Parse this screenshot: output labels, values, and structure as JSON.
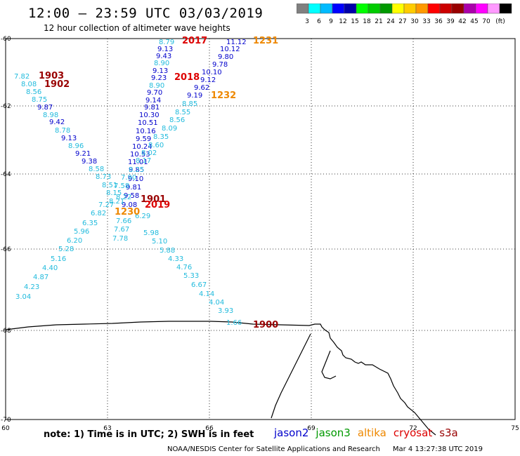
{
  "title": "12:00 – 23:59 UTC 03/03/2019",
  "subtitle": "12 hour collection of altimeter wave heights",
  "legend": {
    "colors": [
      "#808080",
      "#00ffff",
      "#00bbff",
      "#0000ff",
      "#0000aa",
      "#00ff00",
      "#00cc00",
      "#009900",
      "#ffff00",
      "#ffcc00",
      "#ff9900",
      "#ff0000",
      "#cc0000",
      "#990000",
      "#aa00aa",
      "#ff00ff",
      "#ff99ff",
      "#000000"
    ],
    "labels": [
      "3",
      "6",
      "9",
      "12",
      "15",
      "18",
      "21",
      "24",
      "27",
      "30",
      "33",
      "36",
      "39",
      "42",
      "45",
      "70",
      "(ft)"
    ]
  },
  "axes": {
    "lon_ticks": [
      "60",
      "63",
      "66",
      "69",
      "72",
      "75"
    ],
    "lat_ticks": [
      "-60",
      "-62",
      "-64",
      "-66",
      "-68",
      "-70"
    ],
    "lon_range": [
      60,
      75
    ],
    "lat_range": [
      -60,
      -70
    ]
  },
  "colors": {
    "cyan": "#22bbdd",
    "blue": "#0000cc",
    "navy": "#000088",
    "dark": "#990000",
    "red": "#dd0000",
    "orange": "#ee8800",
    "grid": "#000000"
  },
  "passes": [
    {
      "label": "2017",
      "color": "#dd0000"
    },
    {
      "label": "1231",
      "color": "#ee8800"
    },
    {
      "label": "1903",
      "color": "#990000"
    },
    {
      "label": "1902",
      "color": "#990000"
    },
    {
      "label": "2018",
      "color": "#dd0000"
    },
    {
      "label": "1232",
      "color": "#ee8800"
    },
    {
      "label": "1901",
      "color": "#990000"
    },
    {
      "label": "2019",
      "color": "#dd0000"
    },
    {
      "label": "1230",
      "color": "#ee8800"
    },
    {
      "label": "1900",
      "color": "#990000"
    }
  ],
  "readings": [
    {
      "v": "8.79",
      "c": "cyan"
    },
    {
      "v": "9.13",
      "c": "blue"
    },
    {
      "v": "9.43",
      "c": "blue"
    },
    {
      "v": "8.90",
      "c": "cyan"
    },
    {
      "v": "9.13",
      "c": "blue"
    },
    {
      "v": "9.23",
      "c": "blue"
    },
    {
      "v": "8.90",
      "c": "cyan"
    },
    {
      "v": "9.70",
      "c": "blue"
    },
    {
      "v": "9.14",
      "c": "blue"
    },
    {
      "v": "9.81",
      "c": "blue"
    },
    {
      "v": "10.30",
      "c": "blue"
    },
    {
      "v": "10.51",
      "c": "blue"
    },
    {
      "v": "10.16",
      "c": "blue"
    },
    {
      "v": "9.59",
      "c": "blue"
    },
    {
      "v": "10.24",
      "c": "blue"
    },
    {
      "v": "10.53",
      "c": "blue"
    },
    {
      "v": "11.01",
      "c": "blue"
    },
    {
      "v": "9.85",
      "c": "blue"
    },
    {
      "v": "9.10",
      "c": "blue"
    },
    {
      "v": "9.81",
      "c": "blue"
    },
    {
      "v": "9.58",
      "c": "blue"
    },
    {
      "v": "9.08",
      "c": "blue"
    },
    {
      "v": "11.12",
      "c": "blue"
    },
    {
      "v": "10.12",
      "c": "blue"
    },
    {
      "v": "9.80",
      "c": "blue"
    },
    {
      "v": "9.78",
      "c": "blue"
    },
    {
      "v": "10.10",
      "c": "blue"
    },
    {
      "v": "9.12",
      "c": "blue"
    },
    {
      "v": "9.62",
      "c": "blue"
    },
    {
      "v": "9.19",
      "c": "blue"
    },
    {
      "v": "8.85",
      "c": "cyan"
    },
    {
      "v": "8.55",
      "c": "cyan"
    },
    {
      "v": "8.56",
      "c": "cyan"
    },
    {
      "v": "8.09",
      "c": "cyan"
    },
    {
      "v": "8.35",
      "c": "cyan"
    },
    {
      "v": "8.60",
      "c": "cyan"
    },
    {
      "v": "8.02",
      "c": "cyan"
    },
    {
      "v": "8.17",
      "c": "cyan"
    },
    {
      "v": "8.25",
      "c": "cyan"
    },
    {
      "v": "7.90",
      "c": "cyan"
    },
    {
      "v": "7.58",
      "c": "cyan"
    },
    {
      "v": "8.22",
      "c": "cyan"
    },
    {
      "v": "7.82",
      "c": "cyan"
    },
    {
      "v": "8.08",
      "c": "cyan"
    },
    {
      "v": "8.56",
      "c": "cyan"
    },
    {
      "v": "8.75",
      "c": "cyan"
    },
    {
      "v": "9.87",
      "c": "blue"
    },
    {
      "v": "8.98",
      "c": "cyan"
    },
    {
      "v": "9.42",
      "c": "blue"
    },
    {
      "v": "8.78",
      "c": "cyan"
    },
    {
      "v": "9.13",
      "c": "blue"
    },
    {
      "v": "8.96",
      "c": "cyan"
    },
    {
      "v": "9.21",
      "c": "blue"
    },
    {
      "v": "9.38",
      "c": "blue"
    },
    {
      "v": "8.58",
      "c": "cyan"
    },
    {
      "v": "8.73",
      "c": "cyan"
    },
    {
      "v": "8.51",
      "c": "cyan"
    },
    {
      "v": "8.15",
      "c": "cyan"
    },
    {
      "v": "8.21",
      "c": "cyan"
    },
    {
      "v": "7.27",
      "c": "cyan"
    },
    {
      "v": "7.66",
      "c": "cyan"
    },
    {
      "v": "7.67",
      "c": "cyan"
    },
    {
      "v": "7.78",
      "c": "cyan"
    },
    {
      "v": "6.82",
      "c": "cyan"
    },
    {
      "v": "6.35",
      "c": "cyan"
    },
    {
      "v": "5.96",
      "c": "cyan"
    },
    {
      "v": "6.20",
      "c": "cyan"
    },
    {
      "v": "5.28",
      "c": "cyan"
    },
    {
      "v": "5.16",
      "c": "cyan"
    },
    {
      "v": "4.40",
      "c": "cyan"
    },
    {
      "v": "4.87",
      "c": "cyan"
    },
    {
      "v": "4.23",
      "c": "cyan"
    },
    {
      "v": "3.04",
      "c": "cyan"
    },
    {
      "v": "6.29",
      "c": "cyan"
    },
    {
      "v": "5.98",
      "c": "cyan"
    },
    {
      "v": "5.10",
      "c": "cyan"
    },
    {
      "v": "5.88",
      "c": "cyan"
    },
    {
      "v": "4.33",
      "c": "cyan"
    },
    {
      "v": "4.76",
      "c": "cyan"
    },
    {
      "v": "5.33",
      "c": "cyan"
    },
    {
      "v": "6.67",
      "c": "cyan"
    },
    {
      "v": "4.14",
      "c": "cyan"
    },
    {
      "v": "4.04",
      "c": "cyan"
    },
    {
      "v": "3.93",
      "c": "cyan"
    },
    {
      "v": "1.66",
      "c": "cyan"
    }
  ],
  "note": "note:  1) Time is in UTC;  2) SWH is in feet",
  "satellites": [
    {
      "name": "jason2",
      "color": "#0000cc"
    },
    {
      "name": "jason3",
      "color": "#009900"
    },
    {
      "name": "altika",
      "color": "#ee8800"
    },
    {
      "name": "cryosat",
      "color": "#dd0000"
    },
    {
      "name": "s3a",
      "color": "#990000"
    }
  ],
  "footer": {
    "credit": "NOAA/NESDIS Center for Satellite Applications and Research",
    "timestamp": "Mar  4 13:27:38 UTC 2019"
  }
}
